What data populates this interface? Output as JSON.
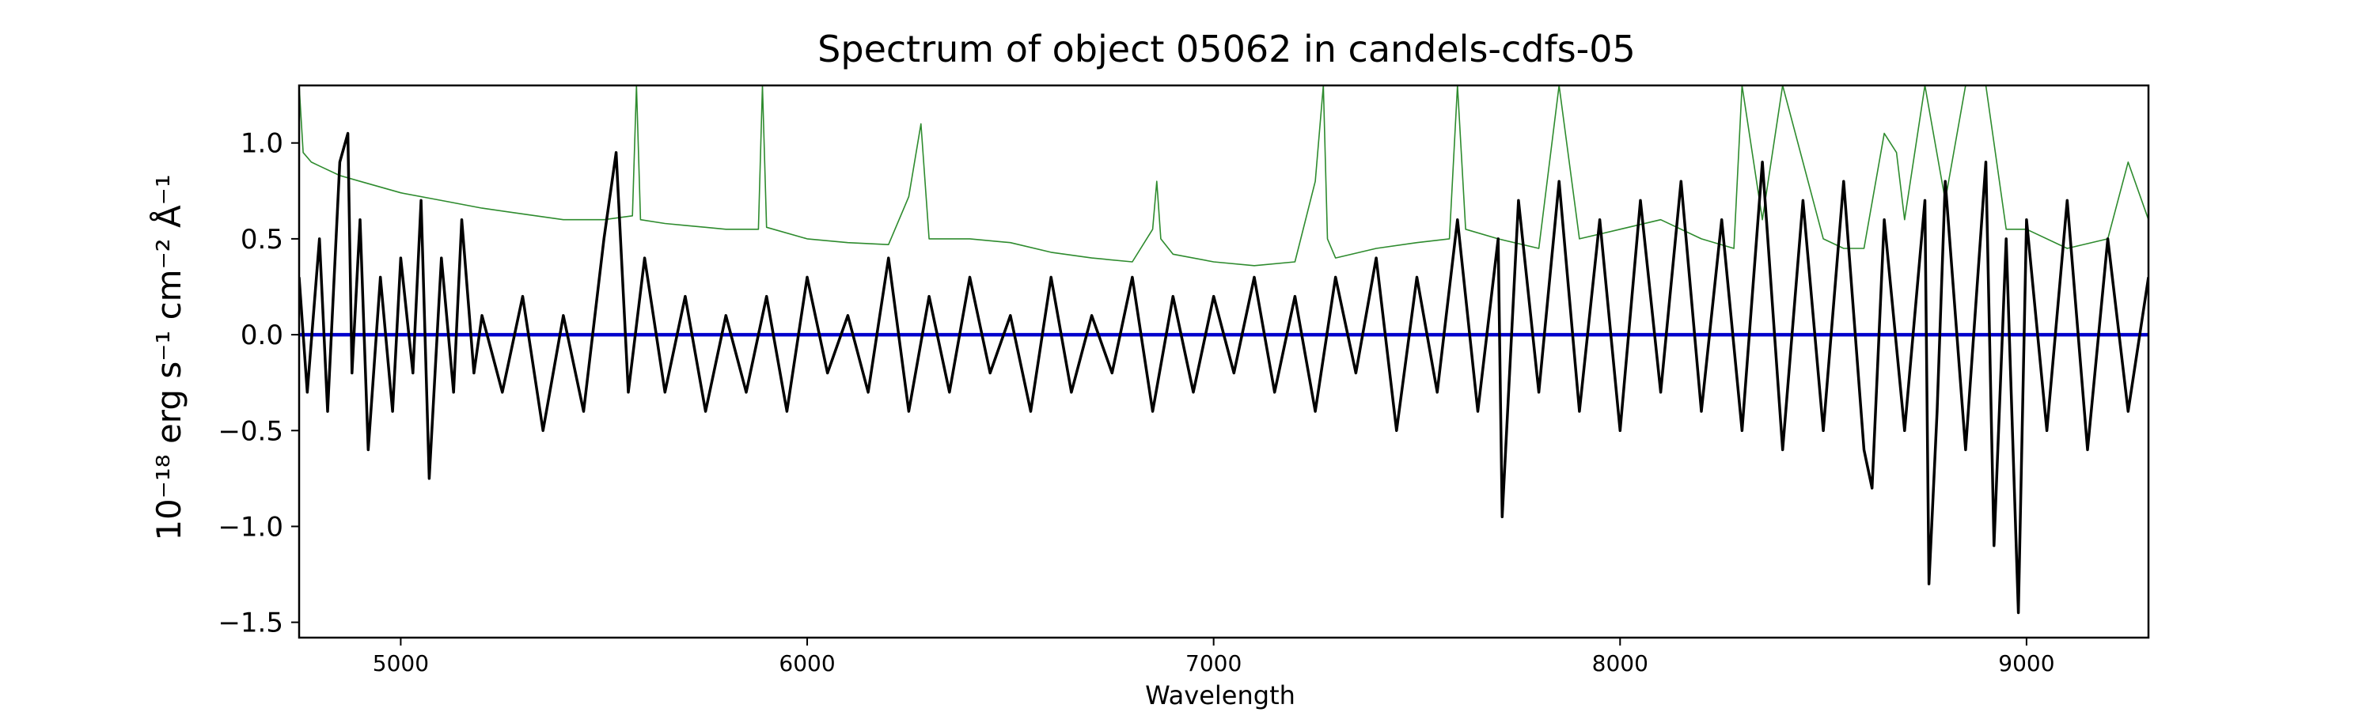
{
  "chart_data": {
    "type": "line",
    "title": "Spectrum of object 05062 in candels-cdfs-05",
    "xlabel": "Wavelength",
    "ylabel": "10⁻¹⁸ erg s⁻¹ cm⁻² Å⁻¹",
    "xlim": [
      4750,
      9300
    ],
    "ylim": [
      -1.58,
      1.3
    ],
    "xticks": [
      {
        "value": 5000,
        "label": "5000"
      },
      {
        "value": 6000,
        "label": "6000"
      },
      {
        "value": 7000,
        "label": "7000"
      },
      {
        "value": 8000,
        "label": "8000"
      },
      {
        "value": 9000,
        "label": "9000"
      }
    ],
    "yticks": [
      {
        "value": 1.0,
        "label": "1.0"
      },
      {
        "value": 0.5,
        "label": "0.5"
      },
      {
        "value": 0.0,
        "label": "0.0"
      },
      {
        "value": -0.5,
        "label": "−0.5"
      },
      {
        "value": -1.0,
        "label": "−1.0"
      },
      {
        "value": -1.5,
        "label": "−1.5"
      }
    ],
    "grid": false,
    "series": [
      {
        "role": "error",
        "color": "#2e8b2e",
        "x": [
          4750,
          4760,
          4780,
          4800,
          4850,
          4900,
          5000,
          5100,
          5200,
          5300,
          5400,
          5500,
          5570,
          5580,
          5590,
          5650,
          5700,
          5800,
          5880,
          5890,
          5900,
          6000,
          6100,
          6200,
          6250,
          6280,
          6300,
          6400,
          6500,
          6600,
          6700,
          6800,
          6850,
          6860,
          6870,
          6900,
          7000,
          7100,
          7200,
          7250,
          7270,
          7280,
          7300,
          7400,
          7500,
          7580,
          7600,
          7620,
          7700,
          7800,
          7850,
          7900,
          8000,
          8100,
          8200,
          8280,
          8300,
          8350,
          8400,
          8500,
          8550,
          8600,
          8650,
          8680,
          8700,
          8750,
          8800,
          8850,
          8900,
          8950,
          9000,
          9100,
          9200,
          9250,
          9300
        ],
        "y": [
          1.3,
          0.95,
          0.9,
          0.88,
          0.83,
          0.8,
          0.74,
          0.7,
          0.66,
          0.63,
          0.6,
          0.6,
          0.62,
          1.3,
          0.6,
          0.58,
          0.57,
          0.55,
          0.55,
          1.3,
          0.56,
          0.5,
          0.48,
          0.47,
          0.72,
          1.1,
          0.5,
          0.5,
          0.48,
          0.43,
          0.4,
          0.38,
          0.55,
          0.8,
          0.5,
          0.42,
          0.38,
          0.36,
          0.38,
          0.8,
          1.3,
          0.5,
          0.4,
          0.45,
          0.48,
          0.5,
          1.3,
          0.55,
          0.5,
          0.45,
          1.3,
          0.5,
          0.55,
          0.6,
          0.5,
          0.45,
          1.3,
          0.6,
          1.3,
          0.5,
          0.45,
          0.45,
          1.05,
          0.95,
          0.6,
          1.3,
          0.7,
          1.3,
          1.3,
          0.55,
          0.55,
          0.45,
          0.5,
          0.9,
          0.6
        ]
      },
      {
        "role": "model",
        "color": "#0000cc",
        "x": [
          4750,
          9300
        ],
        "y": [
          0.0,
          0.0
        ]
      },
      {
        "role": "flux",
        "color": "#000000",
        "x": [
          4750,
          4770,
          4800,
          4820,
          4850,
          4870,
          4880,
          4900,
          4920,
          4950,
          4980,
          5000,
          5030,
          5050,
          5070,
          5100,
          5130,
          5150,
          5180,
          5200,
          5250,
          5300,
          5350,
          5400,
          5450,
          5500,
          5530,
          5560,
          5600,
          5650,
          5700,
          5750,
          5800,
          5850,
          5900,
          5950,
          6000,
          6050,
          6100,
          6150,
          6200,
          6250,
          6300,
          6350,
          6400,
          6450,
          6500,
          6550,
          6600,
          6650,
          6700,
          6750,
          6800,
          6850,
          6900,
          6950,
          7000,
          7050,
          7100,
          7150,
          7200,
          7250,
          7300,
          7350,
          7400,
          7450,
          7500,
          7550,
          7600,
          7650,
          7700,
          7710,
          7750,
          7800,
          7850,
          7900,
          7950,
          8000,
          8050,
          8100,
          8150,
          8200,
          8250,
          8300,
          8350,
          8400,
          8450,
          8500,
          8550,
          8600,
          8620,
          8650,
          8700,
          8750,
          8760,
          8780,
          8800,
          8850,
          8900,
          8920,
          8950,
          8980,
          9000,
          9050,
          9100,
          9150,
          9200,
          9250,
          9300
        ],
        "y": [
          0.3,
          -0.3,
          0.5,
          -0.4,
          0.9,
          1.05,
          -0.2,
          0.6,
          -0.6,
          0.3,
          -0.4,
          0.4,
          -0.2,
          0.7,
          -0.75,
          0.4,
          -0.3,
          0.6,
          -0.2,
          0.1,
          -0.3,
          0.2,
          -0.5,
          0.1,
          -0.4,
          0.5,
          0.95,
          -0.3,
          0.4,
          -0.3,
          0.2,
          -0.4,
          0.1,
          -0.3,
          0.2,
          -0.4,
          0.3,
          -0.2,
          0.1,
          -0.3,
          0.4,
          -0.4,
          0.2,
          -0.3,
          0.3,
          -0.2,
          0.1,
          -0.4,
          0.3,
          -0.3,
          0.1,
          -0.2,
          0.3,
          -0.4,
          0.2,
          -0.3,
          0.2,
          -0.2,
          0.3,
          -0.3,
          0.2,
          -0.4,
          0.3,
          -0.2,
          0.4,
          -0.5,
          0.3,
          -0.3,
          0.6,
          -0.4,
          0.5,
          -0.95,
          0.7,
          -0.3,
          0.8,
          -0.4,
          0.6,
          -0.5,
          0.7,
          -0.3,
          0.8,
          -0.4,
          0.6,
          -0.5,
          0.9,
          -0.6,
          0.7,
          -0.5,
          0.8,
          -0.6,
          -0.8,
          0.6,
          -0.5,
          0.7,
          -1.3,
          -0.4,
          0.8,
          -0.6,
          0.9,
          -1.1,
          0.5,
          -1.45,
          0.6,
          -0.5,
          0.7,
          -0.6,
          0.5,
          -0.4,
          0.3
        ]
      }
    ]
  }
}
